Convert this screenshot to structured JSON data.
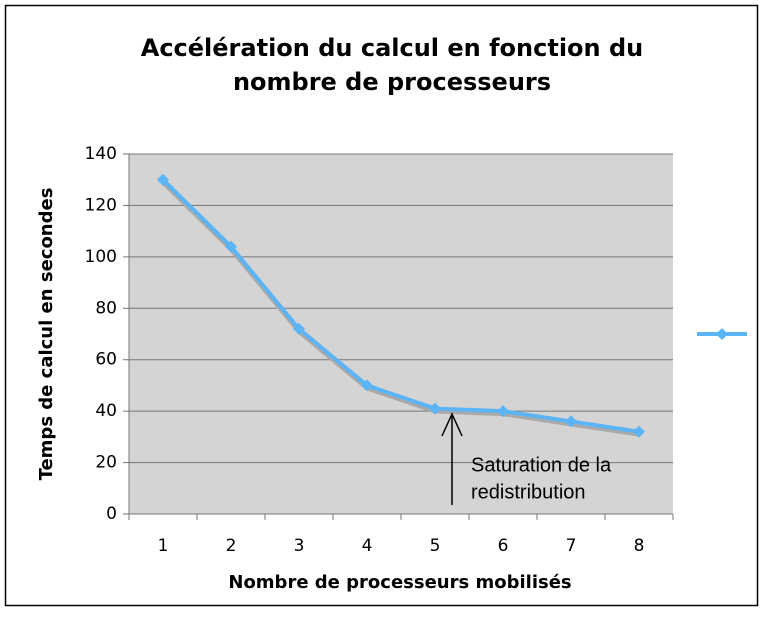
{
  "chart_data": {
    "type": "line",
    "title": [
      "Accélération du calcul en fonction du",
      "nombre de processeurs"
    ],
    "x_label": "Nombre de processeurs mobilisés",
    "y_label": "Temps de calcul en secondes",
    "categories": [
      "1",
      "2",
      "3",
      "4",
      "5",
      "6",
      "7",
      "8"
    ],
    "series": [
      {
        "color": "#5ab4f5",
        "values": [
          130,
          104,
          72,
          50,
          41,
          40,
          36,
          32
        ]
      }
    ],
    "ylim": [
      0,
      140
    ],
    "yticks": [
      0,
      20,
      40,
      60,
      80,
      100,
      120,
      140
    ],
    "grid": true,
    "annotation": [
      "Saturation de la",
      "redistribution"
    ]
  }
}
